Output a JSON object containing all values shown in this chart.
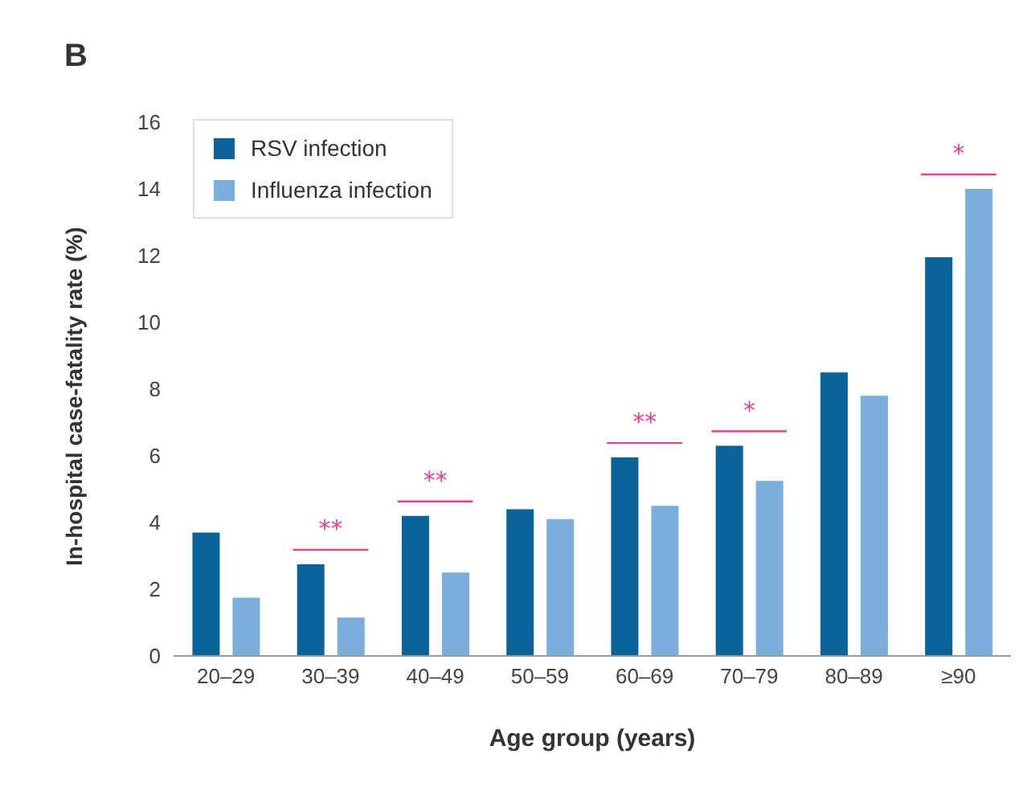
{
  "chart_data": {
    "type": "bar",
    "title": "B",
    "xlabel": "Age group (years)",
    "ylabel": "In-hospital case-fatality rate (%)",
    "categories": [
      "20–29",
      "30–39",
      "40–49",
      "50–59",
      "60–69",
      "70–79",
      "80–89",
      "≥90"
    ],
    "series": [
      {
        "name": "RSV infection",
        "color": "#0a6399",
        "values": [
          3.7,
          2.75,
          4.2,
          4.4,
          5.95,
          6.3,
          8.5,
          11.95
        ]
      },
      {
        "name": "Influenza infection",
        "color": "#7aaedb",
        "values": [
          1.75,
          1.15,
          2.5,
          4.1,
          4.5,
          5.25,
          7.8,
          14.0
        ]
      }
    ],
    "ylim": [
      0,
      16
    ],
    "yticks": [
      0,
      2,
      4,
      6,
      8,
      10,
      12,
      14,
      16
    ],
    "grid": false,
    "legend": "top left",
    "annotations": [
      {
        "text": "**",
        "x": "30–39",
        "y": 2.75
      },
      {
        "text": "**",
        "x": "40–49",
        "y": 4.2
      },
      {
        "text": "**",
        "x": "60–69",
        "y": 5.95
      },
      {
        "text": "*",
        "x": "70–79",
        "y": 6.3
      },
      {
        "text": "*",
        "x": "≥90",
        "y": 14.0
      }
    ]
  }
}
